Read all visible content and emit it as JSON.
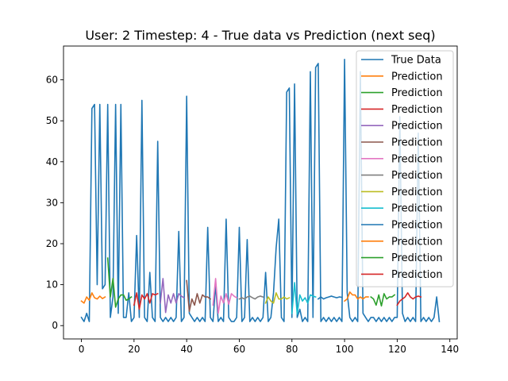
{
  "chart_data": {
    "type": "line",
    "title": "User: 2 Timestep: 4 - True data vs Prediction (next seq)",
    "xlabel": "",
    "ylabel": "",
    "xlim": [
      -6.8,
      142.8
    ],
    "ylim": [
      -3.25,
      68.25
    ],
    "xticks": [
      0,
      20,
      40,
      60,
      80,
      100,
      120,
      140
    ],
    "yticks": [
      0,
      10,
      20,
      30,
      40,
      50,
      60
    ],
    "grid": false,
    "legend_position": "top-right",
    "series": [
      {
        "name": "True Data",
        "color": "#1f77b4",
        "x": [
          0,
          1,
          2,
          3,
          4,
          5,
          6,
          7,
          8,
          9,
          10,
          11,
          12,
          13,
          14,
          15,
          16,
          17,
          18,
          19,
          20,
          21,
          22,
          23,
          24,
          25,
          26,
          27,
          28,
          29,
          30,
          31,
          32,
          33,
          34,
          35,
          36,
          37,
          38,
          39,
          40,
          41,
          42,
          43,
          44,
          45,
          46,
          47,
          48,
          49,
          50,
          51,
          52,
          53,
          54,
          55,
          56,
          57,
          58,
          59,
          60,
          61,
          62,
          63,
          64,
          65,
          66,
          67,
          68,
          69,
          70,
          71,
          72,
          73,
          74,
          75,
          76,
          77,
          78,
          79,
          80,
          81,
          82,
          83,
          84,
          85,
          86,
          87,
          88,
          89,
          90,
          91,
          92,
          93,
          94,
          95,
          96,
          97,
          98,
          99,
          100,
          101,
          102,
          103,
          104,
          105,
          106,
          107,
          108,
          109,
          110,
          111,
          112,
          113,
          114,
          115,
          116,
          117,
          118,
          119,
          120,
          121,
          122,
          123,
          124,
          125,
          126,
          127,
          128,
          129,
          130,
          131,
          132,
          133,
          134,
          135,
          136
        ],
        "y": [
          2,
          1,
          3,
          1,
          53,
          54,
          10,
          54,
          9,
          10,
          54,
          2,
          7,
          54,
          3,
          54,
          2,
          2,
          8,
          1,
          2,
          22,
          2,
          55,
          2,
          1,
          13,
          2,
          1,
          45,
          2,
          1,
          2,
          1,
          2,
          1,
          2,
          23,
          1,
          2,
          56,
          3,
          2,
          1,
          2,
          1,
          2,
          1,
          24,
          2,
          1,
          10,
          1,
          2,
          1,
          26,
          2,
          1,
          1,
          2,
          24,
          1,
          2,
          21,
          1,
          2,
          1,
          2,
          1,
          2,
          13,
          1,
          2,
          8,
          19,
          26,
          2,
          1,
          57,
          58,
          2,
          59,
          2,
          4,
          1,
          2,
          1,
          62,
          2,
          63,
          64,
          1,
          2,
          1,
          2,
          1,
          2,
          1,
          2,
          1,
          65,
          8,
          2,
          1,
          2,
          1,
          62,
          3,
          2,
          1,
          2,
          2,
          1,
          2,
          1,
          2,
          1,
          2,
          1,
          2,
          2,
          51,
          3,
          1,
          2,
          1,
          2,
          1,
          47,
          1,
          2,
          1,
          2,
          1,
          2,
          7,
          1
        ]
      },
      {
        "name": "Prediction",
        "color": "#ff7f0e",
        "x": [
          0,
          1,
          2,
          3,
          4,
          5,
          6,
          7,
          8,
          9
        ],
        "y": [
          6,
          5.5,
          7,
          6.2,
          8,
          6.8,
          6.5,
          7.2,
          6.6,
          7
        ]
      },
      {
        "name": "Prediction",
        "color": "#2ca02c",
        "x": [
          10,
          11,
          12,
          13,
          14,
          15,
          16,
          17,
          18,
          19
        ],
        "y": [
          16.5,
          7,
          11.5,
          4.5,
          6.5,
          7.5,
          7.5,
          6.2,
          6.5,
          7
        ]
      },
      {
        "name": "Prediction",
        "color": "#d62728",
        "x": [
          20,
          21,
          22,
          23,
          24,
          25,
          26,
          27,
          28,
          29
        ],
        "y": [
          5,
          8,
          4,
          7.5,
          6.5,
          7.8,
          5.5,
          7.8,
          7.5,
          7.8
        ]
      },
      {
        "name": "Prediction",
        "color": "#9467bd",
        "x": [
          30,
          31,
          32,
          33,
          34,
          35,
          36,
          37,
          38,
          39
        ],
        "y": [
          5.5,
          11.5,
          3.2,
          7.5,
          5.5,
          7.8,
          5.5,
          7.8,
          7.2,
          6.8
        ]
      },
      {
        "name": "Prediction",
        "color": "#8c564b",
        "x": [
          40,
          41,
          42,
          43,
          44,
          45,
          46,
          47,
          48,
          49
        ],
        "y": [
          11,
          3.5,
          6.5,
          5,
          7.8,
          5.5,
          7.5,
          7,
          7,
          6.5
        ]
      },
      {
        "name": "Prediction",
        "color": "#e377c2",
        "x": [
          50,
          51,
          52,
          53,
          54,
          55,
          56,
          57,
          58,
          59
        ],
        "y": [
          5,
          11.5,
          3,
          7.2,
          5.5,
          7.8,
          5.2,
          7.8,
          7.2,
          6.8
        ]
      },
      {
        "name": "Prediction",
        "color": "#7f7f7f",
        "x": [
          60,
          61,
          62,
          63,
          64,
          65,
          66,
          67,
          68,
          69
        ],
        "y": [
          6.5,
          6.8,
          6.5,
          7,
          7.2,
          6.8,
          6.5,
          7,
          7.2,
          7
        ]
      },
      {
        "name": "Prediction",
        "color": "#bcbd22",
        "x": [
          70,
          71,
          72,
          73,
          74,
          75,
          76,
          77,
          78,
          79
        ],
        "y": [
          5.5,
          7,
          6,
          5.5,
          8,
          6.5,
          6.5,
          7,
          6.5,
          6.8
        ]
      },
      {
        "name": "Prediction",
        "color": "#17becf",
        "x": [
          80,
          81,
          82,
          83,
          84,
          85,
          86,
          87,
          88,
          89
        ],
        "y": [
          3,
          10.5,
          2.8,
          7.5,
          6,
          6.8,
          5.5,
          7.5,
          7.2,
          7
        ]
      },
      {
        "name": "Prediction",
        "color": "#1f77b4",
        "x": [
          90,
          91,
          92,
          93,
          94,
          95,
          96,
          97,
          98,
          99
        ],
        "y": [
          6.5,
          7,
          6.5,
          6.8,
          7,
          7.2,
          7,
          6.8,
          7,
          6.9
        ]
      },
      {
        "name": "Prediction",
        "color": "#ff7f0e",
        "x": [
          100,
          101,
          102,
          103,
          104,
          105,
          106,
          107,
          108,
          109
        ],
        "y": [
          6,
          6.5,
          8.2,
          7.5,
          7.5,
          6.5,
          7,
          6.5,
          7,
          7
        ]
      },
      {
        "name": "Prediction",
        "color": "#2ca02c",
        "x": [
          110,
          111,
          112,
          113,
          114,
          115,
          116,
          117,
          118,
          119
        ],
        "y": [
          7,
          6.5,
          5,
          7.5,
          4.8,
          7.8,
          6.5,
          7,
          7,
          7.5
        ]
      },
      {
        "name": "Prediction",
        "color": "#d62728",
        "x": [
          120,
          121,
          122,
          123,
          124,
          125,
          126,
          127,
          128,
          129
        ],
        "y": [
          5,
          6,
          6.5,
          7,
          8,
          7,
          6.5,
          7,
          7.2,
          7
        ]
      }
    ]
  }
}
